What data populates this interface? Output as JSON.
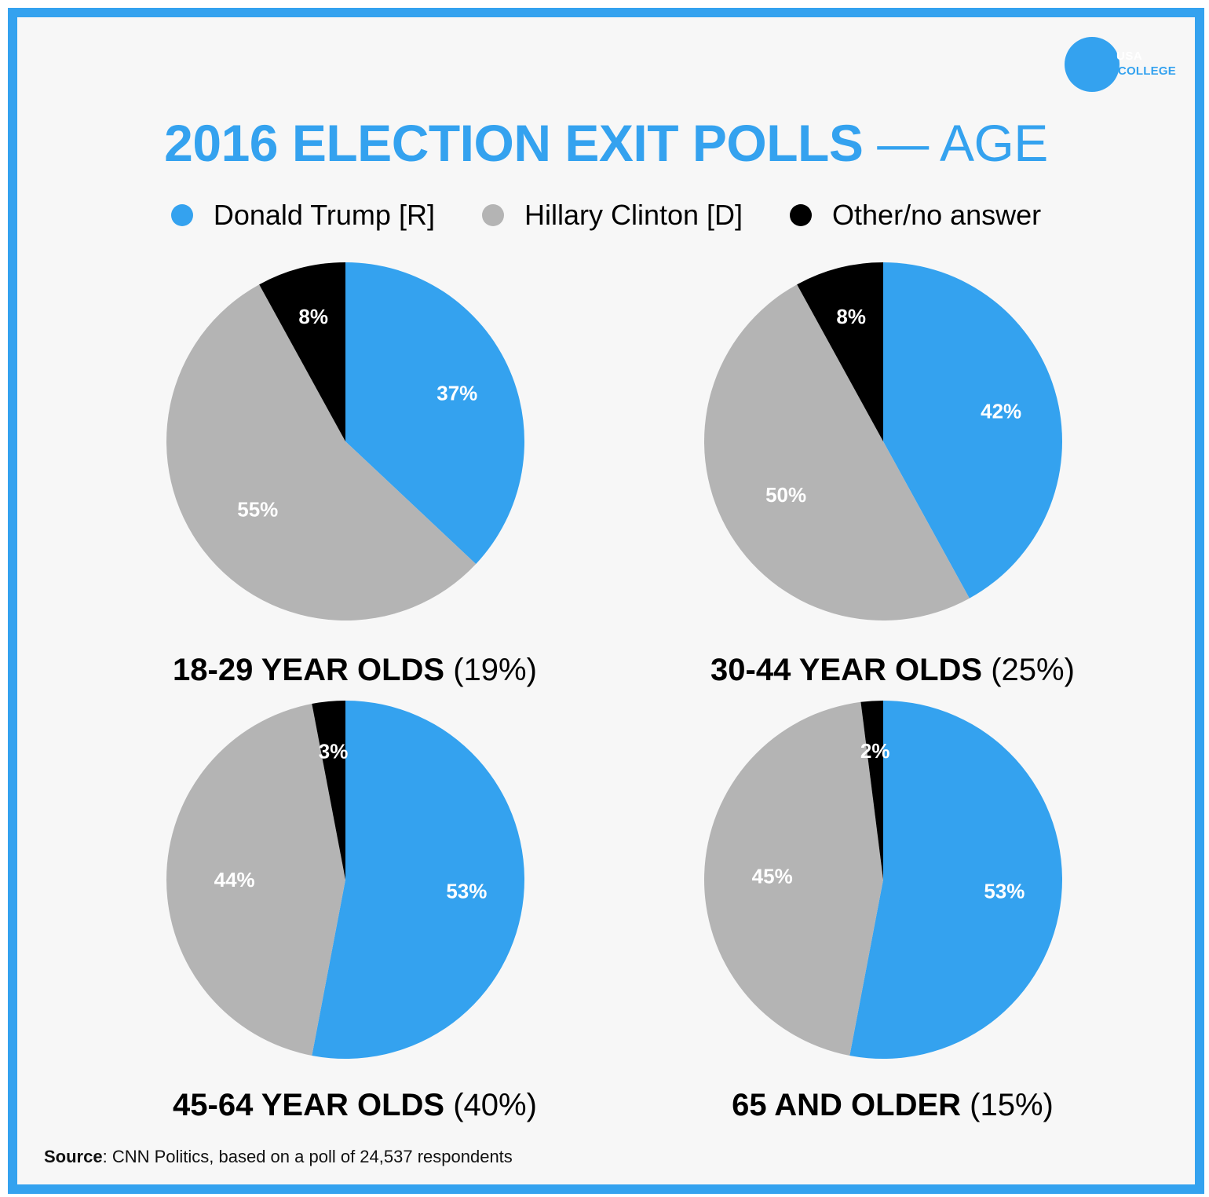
{
  "title": {
    "main": "2016 ELECTION EXIT POLLS",
    "dash": "—",
    "sub": "AGE"
  },
  "logo": {
    "top_text": "USA",
    "bottom_text": "COLLEGE"
  },
  "colors": {
    "trump": "#34a2ef",
    "clinton": "#b4b4b4",
    "other": "#000000",
    "accent": "#34a2ef",
    "frame": "#34a2ef"
  },
  "legend": [
    {
      "label": "Donald Trump  [R]",
      "color": "#34a2ef"
    },
    {
      "label": "Hillary Clinton [D]",
      "color": "#b4b4b4"
    },
    {
      "label": "Other/no answer",
      "color": "#000000"
    }
  ],
  "chart_data": [
    {
      "type": "pie",
      "title": "18-29 YEAR OLDS",
      "share": "(19%)",
      "slices": [
        {
          "series": "Donald Trump [R]",
          "value": 37,
          "label": "37%"
        },
        {
          "series": "Hillary Clinton [D]",
          "value": 55,
          "label": "55%"
        },
        {
          "series": "Other/no answer",
          "value": 8,
          "label": "8%"
        }
      ]
    },
    {
      "type": "pie",
      "title": "30-44 YEAR OLDS",
      "share": "(25%)",
      "slices": [
        {
          "series": "Donald Trump [R]",
          "value": 42,
          "label": "42%"
        },
        {
          "series": "Hillary Clinton [D]",
          "value": 50,
          "label": "50%"
        },
        {
          "series": "Other/no answer",
          "value": 8,
          "label": "8%"
        }
      ]
    },
    {
      "type": "pie",
      "title": "45-64 YEAR OLDS",
      "share": "(40%)",
      "slices": [
        {
          "series": "Donald Trump [R]",
          "value": 53,
          "label": "53%"
        },
        {
          "series": "Hillary Clinton [D]",
          "value": 44,
          "label": "44%"
        },
        {
          "series": "Other/no answer",
          "value": 3,
          "label": "3%"
        }
      ]
    },
    {
      "type": "pie",
      "title": "65 AND OLDER",
      "share": "(15%)",
      "slices": [
        {
          "series": "Donald Trump [R]",
          "value": 53,
          "label": "53%"
        },
        {
          "series": "Hillary Clinton [D]",
          "value": 45,
          "label": "45%"
        },
        {
          "series": "Other/no answer",
          "value": 2,
          "label": "2%"
        }
      ]
    }
  ],
  "source": {
    "label": "Source",
    "text": ": CNN Politics, based on a poll of 24,537 respondents"
  }
}
